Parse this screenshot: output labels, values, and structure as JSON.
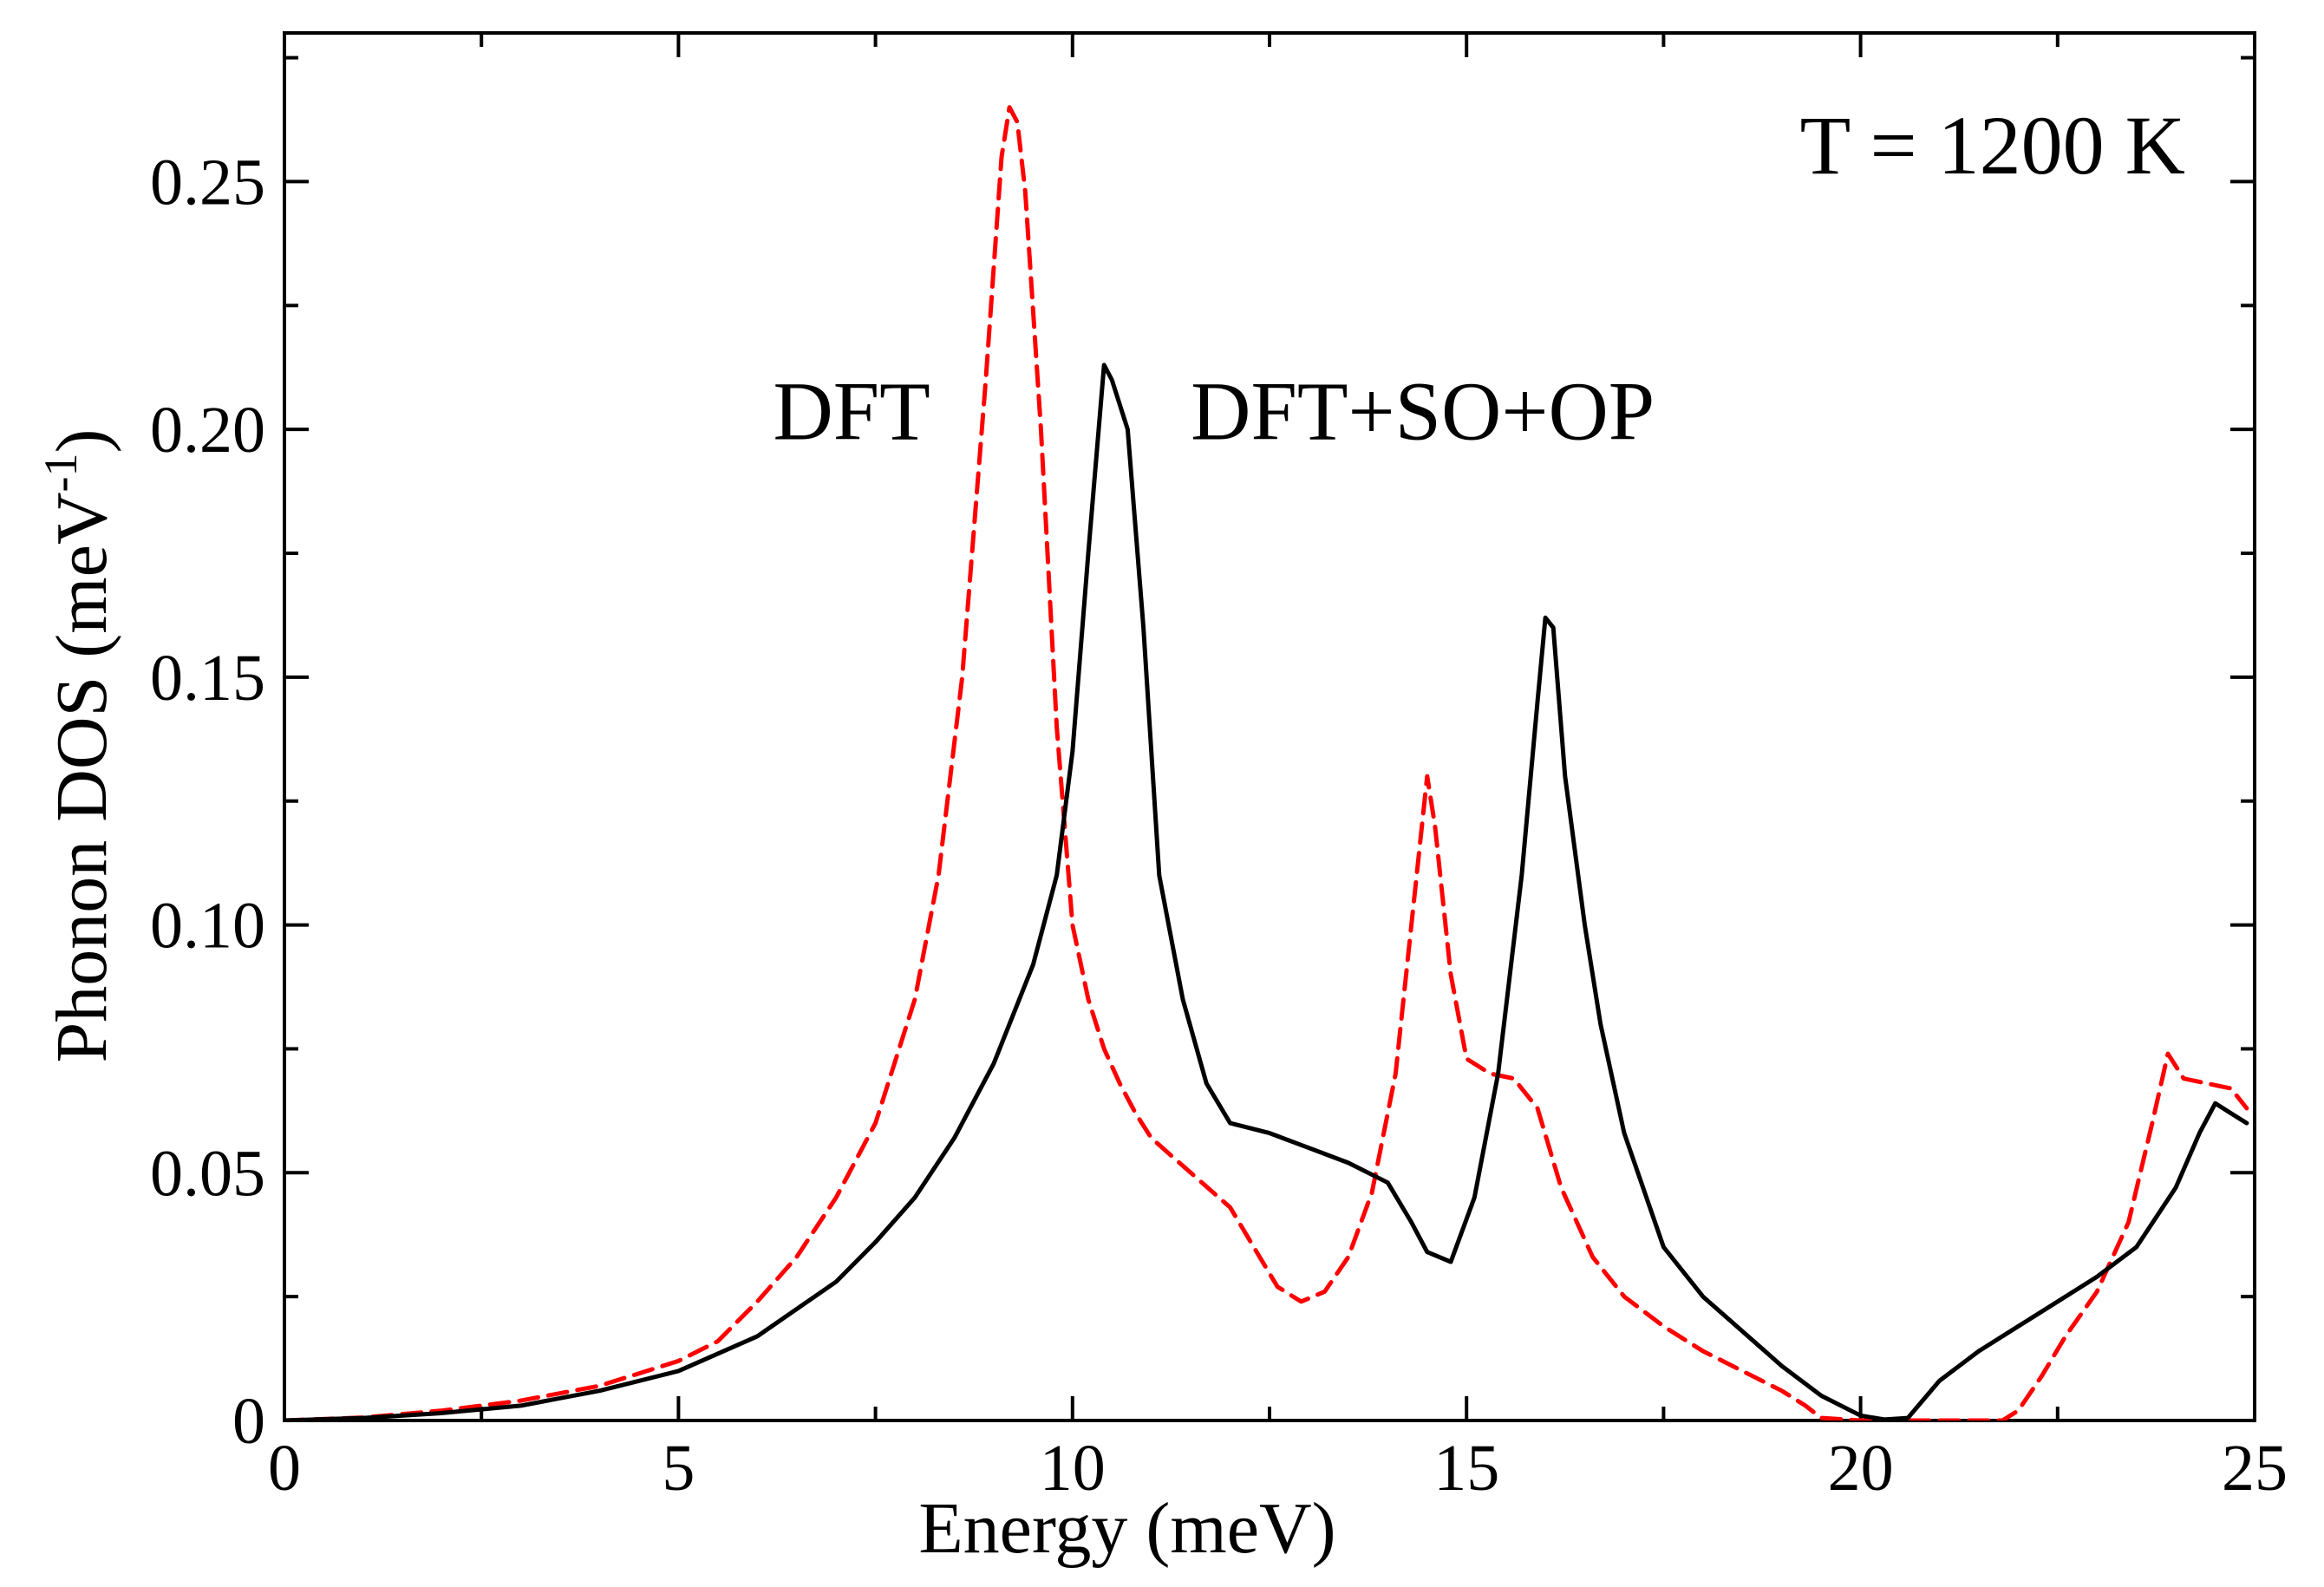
{
  "chart_data": {
    "type": "line",
    "title": "",
    "annotation": "T = 1200 K",
    "xlabel": "Energy (meV)",
    "ylabel_main": "Phonon DOS (meV",
    "ylabel_sup": "-1",
    "ylabel_close": ")",
    "xlim": [
      0,
      25
    ],
    "ylim": [
      0,
      0.28
    ],
    "x_ticks": [
      0,
      5,
      10,
      15,
      20,
      25
    ],
    "x_tick_labels": [
      "0",
      "5",
      "10",
      "15",
      "20",
      "25"
    ],
    "x_minor_step": 2.5,
    "y_ticks": [
      0,
      0.05,
      0.1,
      0.15,
      0.2,
      0.25
    ],
    "y_tick_labels": [
      "0",
      "0.05",
      "0.10",
      "0.15",
      "0.20",
      "0.25"
    ],
    "y_minor_step": 0.025,
    "grid": false,
    "series": [
      {
        "name": "DFT",
        "color": "#ff0000",
        "style": "dashed",
        "label_pos": [
          6.2,
          0.198
        ],
        "x": [
          0,
          1,
          2,
          3,
          4,
          5,
          5.5,
          6,
          6.5,
          7,
          7.5,
          8,
          8.3,
          8.6,
          8.9,
          9.1,
          9.2,
          9.3,
          9.4,
          9.6,
          9.8,
          10.0,
          10.2,
          10.4,
          10.6,
          10.8,
          11.0,
          11.5,
          12.0,
          12.3,
          12.6,
          12.9,
          13.2,
          13.5,
          13.8,
          14.1,
          14.3,
          14.5,
          14.6,
          14.8,
          15.0,
          15.3,
          15.6,
          15.9,
          16.2,
          16.6,
          17.0,
          17.5,
          18.0,
          18.5,
          19.0,
          19.3,
          19.5,
          20.0,
          21.0,
          21.8,
          22.0,
          22.3,
          22.6,
          23.0,
          23.4,
          23.7,
          23.9,
          24.1,
          24.4,
          24.7,
          24.9
        ],
        "y": [
          0,
          0.0006,
          0.002,
          0.004,
          0.007,
          0.012,
          0.016,
          0.024,
          0.033,
          0.045,
          0.06,
          0.085,
          0.11,
          0.15,
          0.21,
          0.255,
          0.265,
          0.262,
          0.248,
          0.2,
          0.14,
          0.1,
          0.085,
          0.075,
          0.068,
          0.062,
          0.057,
          0.05,
          0.043,
          0.035,
          0.027,
          0.024,
          0.026,
          0.033,
          0.046,
          0.07,
          0.1,
          0.13,
          0.12,
          0.09,
          0.073,
          0.07,
          0.069,
          0.063,
          0.047,
          0.033,
          0.025,
          0.019,
          0.014,
          0.01,
          0.006,
          0.003,
          0.0005,
          0,
          0,
          0,
          0.002,
          0.009,
          0.017,
          0.026,
          0.04,
          0.06,
          0.074,
          0.069,
          0.068,
          0.067,
          0.063
        ]
      },
      {
        "name": "DFT+SO+OP",
        "color": "#000000",
        "style": "solid",
        "label_pos": [
          11.5,
          0.198
        ],
        "x": [
          0,
          1,
          2,
          3,
          4,
          5,
          6,
          7,
          7.5,
          8,
          8.5,
          9,
          9.5,
          9.8,
          10.0,
          10.2,
          10.4,
          10.5,
          10.7,
          10.9,
          11.1,
          11.4,
          11.7,
          12.0,
          12.5,
          13.0,
          13.5,
          14.0,
          14.3,
          14.5,
          14.8,
          15.1,
          15.4,
          15.7,
          15.9,
          16.0,
          16.1,
          16.25,
          16.5,
          16.7,
          17.0,
          17.5,
          18.0,
          18.5,
          19.0,
          19.5,
          20.0,
          20.3,
          20.6,
          21.0,
          21.5,
          22.0,
          22.5,
          23.0,
          23.5,
          24.0,
          24.3,
          24.5,
          24.7,
          24.9
        ],
        "y": [
          0,
          0.0005,
          0.0015,
          0.003,
          0.006,
          0.01,
          0.017,
          0.028,
          0.036,
          0.045,
          0.057,
          0.072,
          0.092,
          0.11,
          0.135,
          0.175,
          0.213,
          0.21,
          0.2,
          0.16,
          0.11,
          0.085,
          0.068,
          0.06,
          0.058,
          0.055,
          0.052,
          0.048,
          0.04,
          0.034,
          0.032,
          0.045,
          0.07,
          0.11,
          0.145,
          0.162,
          0.16,
          0.13,
          0.1,
          0.08,
          0.058,
          0.035,
          0.025,
          0.018,
          0.011,
          0.005,
          0.001,
          0.0002,
          0.0005,
          0.008,
          0.014,
          0.019,
          0.024,
          0.029,
          0.035,
          0.047,
          0.058,
          0.064,
          0.062,
          0.06
        ]
      }
    ]
  }
}
